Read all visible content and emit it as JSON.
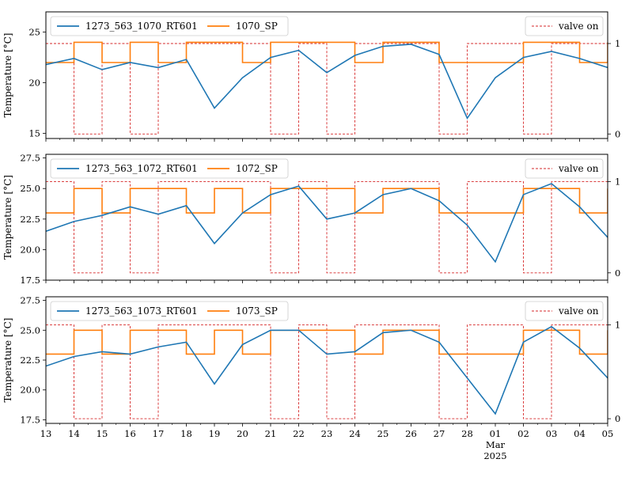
{
  "chart_data": [
    {
      "type": "line",
      "ylabel": "Temperature [°C]",
      "ylim": [
        14.5,
        27.0
      ],
      "yticks": [
        15,
        20,
        25
      ],
      "y2lim": [
        -0.05,
        1.35
      ],
      "y2ticks": [
        0,
        1
      ],
      "xlim": [
        "2025-02-13",
        "2025-03-05"
      ],
      "grid": false,
      "legend_left": "upper-left",
      "legend_right": "upper-right",
      "series": [
        {
          "name": "1273_563_1070_RT601",
          "color": "#1f77b4",
          "x": [
            "2025-02-13",
            "2025-02-14",
            "2025-02-15",
            "2025-02-16",
            "2025-02-17",
            "2025-02-18",
            "2025-02-19",
            "2025-02-20",
            "2025-02-21",
            "2025-02-22",
            "2025-02-23",
            "2025-02-24",
            "2025-02-25",
            "2025-02-26",
            "2025-02-27",
            "2025-02-28",
            "2025-03-01",
            "2025-03-02",
            "2025-03-03",
            "2025-03-04",
            "2025-03-05"
          ],
          "values": [
            21.8,
            22.4,
            21.3,
            22.0,
            21.5,
            22.3,
            17.5,
            20.5,
            22.5,
            23.2,
            21.0,
            22.7,
            23.6,
            23.8,
            22.8,
            16.5,
            20.5,
            22.5,
            23.1,
            22.4,
            21.5
          ]
        },
        {
          "name": "1070_SP",
          "color": "#ff7f0e",
          "x": [
            "2025-02-13",
            "2025-02-14",
            "2025-02-15",
            "2025-02-16",
            "2025-02-17",
            "2025-02-18",
            "2025-02-19",
            "2025-02-20",
            "2025-02-21",
            "2025-02-22",
            "2025-02-23",
            "2025-02-24",
            "2025-02-25",
            "2025-02-26",
            "2025-02-27",
            "2025-02-28",
            "2025-03-01",
            "2025-03-02",
            "2025-03-03",
            "2025-03-04",
            "2025-03-05"
          ],
          "values": [
            22,
            24,
            22,
            24,
            22,
            24,
            24,
            22,
            24,
            24,
            24,
            22,
            24,
            24,
            22,
            22,
            22,
            24,
            24,
            22,
            24
          ]
        },
        {
          "name": "valve on",
          "color": "#d62728",
          "style": "dashed",
          "axis": "right",
          "x": [
            "2025-02-13",
            "2025-02-14",
            "2025-02-15",
            "2025-02-16",
            "2025-02-17",
            "2025-02-18",
            "2025-02-19",
            "2025-02-20",
            "2025-02-21",
            "2025-02-22",
            "2025-02-23",
            "2025-02-24",
            "2025-02-25",
            "2025-02-26",
            "2025-02-27",
            "2025-02-28",
            "2025-03-01",
            "2025-03-02",
            "2025-03-03",
            "2025-03-04",
            "2025-03-05"
          ],
          "values": [
            1,
            0,
            1,
            0,
            1,
            1,
            1,
            1,
            0,
            1,
            0,
            1,
            1,
            1,
            0,
            1,
            1,
            0,
            1,
            1,
            1
          ]
        }
      ]
    },
    {
      "type": "line",
      "ylabel": "Temperature [°C]",
      "ylim": [
        17.5,
        27.8
      ],
      "yticks": [
        17.5,
        20.0,
        22.5,
        25.0,
        27.5
      ],
      "y2lim": [
        -0.08,
        1.3
      ],
      "y2ticks": [
        0,
        1
      ],
      "xlim": [
        "2025-02-13",
        "2025-03-05"
      ],
      "grid": false,
      "legend_left": "upper-left",
      "legend_right": "upper-right",
      "series": [
        {
          "name": "1273_563_1072_RT601",
          "color": "#1f77b4",
          "x": [
            "2025-02-13",
            "2025-02-14",
            "2025-02-15",
            "2025-02-16",
            "2025-02-17",
            "2025-02-18",
            "2025-02-19",
            "2025-02-20",
            "2025-02-21",
            "2025-02-22",
            "2025-02-23",
            "2025-02-24",
            "2025-02-25",
            "2025-02-26",
            "2025-02-27",
            "2025-02-28",
            "2025-03-01",
            "2025-03-02",
            "2025-03-03",
            "2025-03-04",
            "2025-03-05"
          ],
          "values": [
            21.5,
            22.3,
            22.8,
            23.5,
            22.9,
            23.6,
            20.5,
            23.0,
            24.5,
            25.2,
            22.5,
            23.0,
            24.5,
            25.0,
            24.0,
            22.0,
            19.0,
            24.5,
            25.4,
            23.5,
            21.0
          ]
        },
        {
          "name": "1072_SP",
          "color": "#ff7f0e",
          "x": [
            "2025-02-13",
            "2025-02-14",
            "2025-02-15",
            "2025-02-16",
            "2025-02-17",
            "2025-02-18",
            "2025-02-19",
            "2025-02-20",
            "2025-02-21",
            "2025-02-22",
            "2025-02-23",
            "2025-02-24",
            "2025-02-25",
            "2025-02-26",
            "2025-02-27",
            "2025-02-28",
            "2025-03-01",
            "2025-03-02",
            "2025-03-03",
            "2025-03-04",
            "2025-03-05"
          ],
          "values": [
            23,
            25,
            23,
            25,
            25,
            23,
            25,
            23,
            25,
            25,
            25,
            23,
            25,
            25,
            23,
            23,
            23,
            25,
            25,
            23,
            25
          ]
        },
        {
          "name": "valve on",
          "color": "#d62728",
          "style": "dashed",
          "axis": "right",
          "x": [
            "2025-02-13",
            "2025-02-14",
            "2025-02-15",
            "2025-02-16",
            "2025-02-17",
            "2025-02-18",
            "2025-02-19",
            "2025-02-20",
            "2025-02-21",
            "2025-02-22",
            "2025-02-23",
            "2025-02-24",
            "2025-02-25",
            "2025-02-26",
            "2025-02-27",
            "2025-02-28",
            "2025-03-01",
            "2025-03-02",
            "2025-03-03",
            "2025-03-04",
            "2025-03-05"
          ],
          "values": [
            1,
            0,
            1,
            0,
            1,
            1,
            1,
            1,
            0,
            1,
            0,
            1,
            1,
            1,
            0,
            1,
            1,
            0,
            1,
            1,
            1
          ]
        }
      ]
    },
    {
      "type": "line",
      "ylabel": "Temperature [°C]",
      "ylim": [
        17.2,
        27.8
      ],
      "yticks": [
        17.5,
        20.0,
        22.5,
        25.0,
        27.5
      ],
      "y2lim": [
        -0.05,
        1.3
      ],
      "y2ticks": [
        0,
        1
      ],
      "xlim": [
        "2025-02-13",
        "2025-03-05"
      ],
      "xticks": [
        "13",
        "14",
        "15",
        "16",
        "17",
        "18",
        "19",
        "20",
        "21",
        "22",
        "23",
        "24",
        "25",
        "26",
        "27",
        "28",
        "01",
        "02",
        "03",
        "04",
        "05"
      ],
      "xtick_month": "Mar",
      "xtick_year": "2025",
      "grid": false,
      "legend_left": "upper-left",
      "legend_right": "upper-right",
      "series": [
        {
          "name": "1273_563_1073_RT601",
          "color": "#1f77b4",
          "x": [
            "2025-02-13",
            "2025-02-14",
            "2025-02-15",
            "2025-02-16",
            "2025-02-17",
            "2025-02-18",
            "2025-02-19",
            "2025-02-20",
            "2025-02-21",
            "2025-02-22",
            "2025-02-23",
            "2025-02-24",
            "2025-02-25",
            "2025-02-26",
            "2025-02-27",
            "2025-02-28",
            "2025-03-01",
            "2025-03-02",
            "2025-03-03",
            "2025-03-04",
            "2025-03-05"
          ],
          "values": [
            22.0,
            22.8,
            23.2,
            23.0,
            23.6,
            24.0,
            20.5,
            23.8,
            25.0,
            25.0,
            23.0,
            23.2,
            24.8,
            25.0,
            24.0,
            21.0,
            18.0,
            24.0,
            25.3,
            23.5,
            21.0
          ]
        },
        {
          "name": "1073_SP",
          "color": "#ff7f0e",
          "x": [
            "2025-02-13",
            "2025-02-14",
            "2025-02-15",
            "2025-02-16",
            "2025-02-17",
            "2025-02-18",
            "2025-02-19",
            "2025-02-20",
            "2025-02-21",
            "2025-02-22",
            "2025-02-23",
            "2025-02-24",
            "2025-02-25",
            "2025-02-26",
            "2025-02-27",
            "2025-02-28",
            "2025-03-01",
            "2025-03-02",
            "2025-03-03",
            "2025-03-04",
            "2025-03-05"
          ],
          "values": [
            23,
            25,
            23,
            25,
            25,
            23,
            25,
            23,
            25,
            25,
            25,
            23,
            25,
            25,
            23,
            23,
            23,
            25,
            25,
            23,
            25
          ]
        },
        {
          "name": "valve on",
          "color": "#d62728",
          "style": "dashed",
          "axis": "right",
          "x": [
            "2025-02-13",
            "2025-02-14",
            "2025-02-15",
            "2025-02-16",
            "2025-02-17",
            "2025-02-18",
            "2025-02-19",
            "2025-02-20",
            "2025-02-21",
            "2025-02-22",
            "2025-02-23",
            "2025-02-24",
            "2025-02-25",
            "2025-02-26",
            "2025-02-27",
            "2025-02-28",
            "2025-03-01",
            "2025-03-02",
            "2025-03-03",
            "2025-03-04",
            "2025-03-05"
          ],
          "values": [
            1,
            0,
            1,
            0,
            1,
            1,
            1,
            1,
            0,
            1,
            0,
            1,
            1,
            1,
            0,
            1,
            1,
            0,
            1,
            1,
            1
          ]
        }
      ]
    }
  ]
}
